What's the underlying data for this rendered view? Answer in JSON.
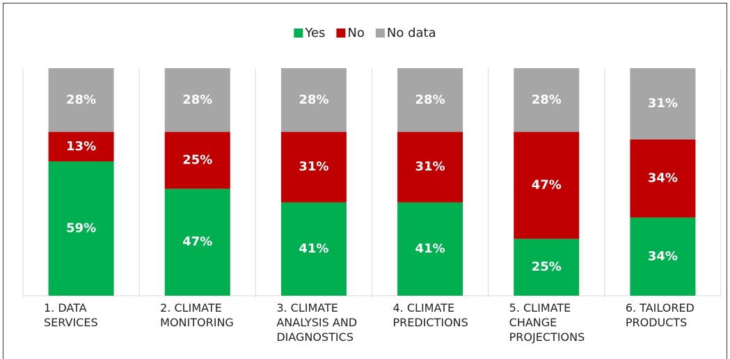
{
  "chart_data": {
    "type": "stacked_bar",
    "categories": [
      "1. DATA SERVICES",
      "2. CLIMATE MONITORING",
      "3. CLIMATE ANALYSIS AND DIAGNOSTICS",
      "4. CLIMATE PREDICTIONS",
      "5. CLIMATE CHANGE PROJECTIONS",
      "6. TAILORED PRODUCTS"
    ],
    "series": [
      {
        "name": "Yes",
        "color": "#00b050",
        "values": [
          59,
          47,
          41,
          41,
          25,
          34
        ],
        "value_labels": [
          "59%",
          "47%",
          "41%",
          "41%",
          "25%",
          "34%"
        ]
      },
      {
        "name": "No",
        "color": "#c00000",
        "values": [
          13,
          25,
          31,
          31,
          47,
          34
        ],
        "value_labels": [
          "13%",
          "25%",
          "31%",
          "31%",
          "47%",
          "34%"
        ]
      },
      {
        "name": "No data",
        "color": "#a6a6a6",
        "values": [
          28,
          28,
          28,
          28,
          28,
          31
        ],
        "value_labels": [
          "28%",
          "28%",
          "28%",
          "28%",
          "28%",
          "31%"
        ]
      }
    ],
    "legend": "top"
  }
}
